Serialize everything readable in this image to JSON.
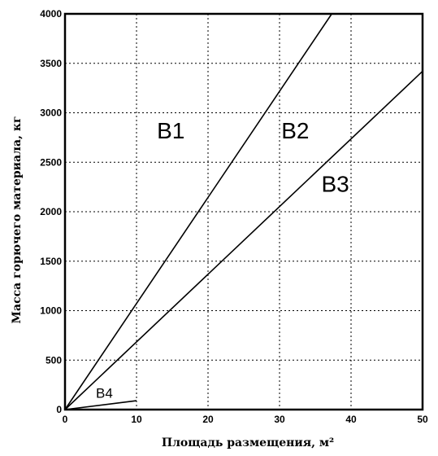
{
  "chart_data": {
    "type": "line",
    "xlabel": "Площадь размещения, м²",
    "ylabel": "Масса горючего материала, кг",
    "xlim": [
      0,
      50
    ],
    "ylim": [
      0,
      4000
    ],
    "xticks": [
      0,
      10,
      20,
      30,
      40,
      50
    ],
    "yticks": [
      0,
      500,
      1000,
      1500,
      2000,
      2500,
      3000,
      3500,
      4000
    ],
    "grid": true,
    "series": [
      {
        "x": [
          0,
          37.3
        ],
        "y": [
          0,
          4000
        ]
      },
      {
        "x": [
          0,
          50
        ],
        "y": [
          0,
          3420
        ]
      },
      {
        "x": [
          0,
          10
        ],
        "y": [
          0,
          90
        ]
      }
    ],
    "annotations": [
      {
        "text": "В1",
        "x": 14.8,
        "y": 2740,
        "size": "large"
      },
      {
        "text": "В2",
        "x": 32.2,
        "y": 2740,
        "size": "large"
      },
      {
        "text": "В3",
        "x": 37.8,
        "y": 2200,
        "size": "large"
      },
      {
        "text": "В4",
        "x": 5.5,
        "y": 120,
        "size": "small"
      }
    ]
  }
}
